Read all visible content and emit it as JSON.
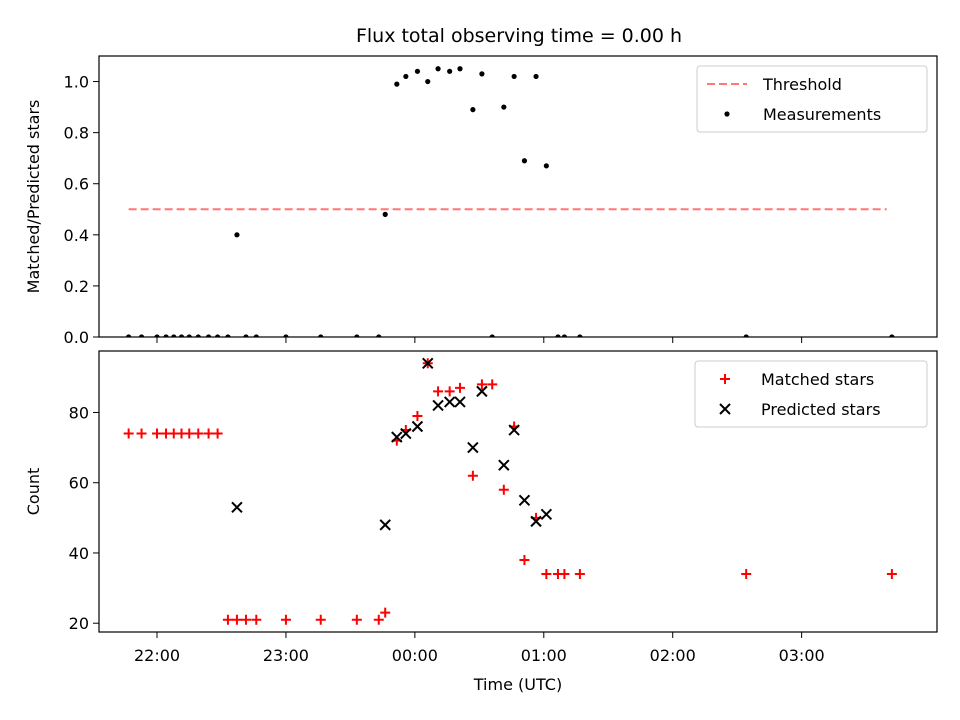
{
  "figure_title": "Flux total observing time = 0.00 h",
  "colors": {
    "threshold": "#ff7777",
    "measurements": "#000000",
    "matched": "#ff0000",
    "predicted": "#000000"
  },
  "chart_data": [
    {
      "type": "scatter",
      "title": "Flux total observing time = 0.00 h",
      "xlabel": "",
      "ylabel": "Matched/Predicted stars",
      "x_unit": "hours (UTC, relative to 00:00; negative = previous evening)",
      "xlim": [
        -2.45,
        4.05
      ],
      "ylim": [
        0,
        1.1
      ],
      "x_ticks": [
        -2,
        -1,
        0,
        1,
        2,
        3
      ],
      "x_tick_labels": [
        "",
        "",
        "",
        "",
        "",
        ""
      ],
      "y_ticks": [
        0.0,
        0.2,
        0.4,
        0.6,
        0.8,
        1.0
      ],
      "y_tick_labels": [
        "0.0",
        "0.2",
        "0.4",
        "0.6",
        "0.8",
        "1.0"
      ],
      "legend_position": "top-right",
      "series": [
        {
          "name": "Threshold",
          "style": "dashed-line",
          "x": [
            -2.22,
            3.66
          ],
          "y": [
            0.5,
            0.5
          ]
        },
        {
          "name": "Measurements",
          "style": "dot",
          "x": [
            -2.22,
            -2.12,
            -2.0,
            -1.93,
            -1.87,
            -1.81,
            -1.75,
            -1.68,
            -1.6,
            -1.53,
            -1.45,
            -1.38,
            -1.31,
            -1.23,
            -1.0,
            -0.73,
            -0.45,
            -0.28,
            -0.23,
            -0.14,
            -0.07,
            0.02,
            0.1,
            0.18,
            0.27,
            0.35,
            0.45,
            0.52,
            0.6,
            0.69,
            0.77,
            0.85,
            0.94,
            1.02,
            1.11,
            1.16,
            1.28,
            2.57,
            3.7
          ],
          "y": [
            0,
            0,
            0,
            0,
            0,
            0,
            0,
            0,
            0,
            0,
            0,
            0.4,
            0,
            0,
            0,
            0,
            0,
            0,
            0.48,
            0.99,
            1.02,
            1.04,
            1.0,
            1.05,
            1.04,
            1.05,
            0.89,
            1.03,
            0,
            0.9,
            1.02,
            0.69,
            1.02,
            0.67,
            0,
            0,
            0,
            0,
            0
          ]
        }
      ]
    },
    {
      "type": "scatter",
      "title": "",
      "xlabel": "Time (UTC)",
      "ylabel": "Count",
      "x_unit": "hours (UTC, relative to 00:00; negative = previous evening)",
      "xlim": [
        -2.45,
        4.05
      ],
      "ylim": [
        17.5,
        97.5
      ],
      "x_ticks": [
        -2,
        -1,
        0,
        1,
        2,
        3
      ],
      "x_tick_labels": [
        "22:00",
        "23:00",
        "00:00",
        "01:00",
        "02:00",
        "03:00"
      ],
      "y_ticks": [
        20,
        40,
        60,
        80
      ],
      "y_tick_labels": [
        "20",
        "40",
        "60",
        "80"
      ],
      "legend_position": "top-right",
      "series": [
        {
          "name": "Matched stars",
          "style": "plus",
          "x": [
            -2.22,
            -2.12,
            -2.0,
            -1.93,
            -1.87,
            -1.81,
            -1.75,
            -1.68,
            -1.6,
            -1.53,
            -1.45,
            -1.38,
            -1.31,
            -1.23,
            -1.0,
            -0.73,
            -0.45,
            -0.28,
            -0.23,
            -0.14,
            -0.07,
            0.02,
            0.1,
            0.18,
            0.27,
            0.35,
            0.45,
            0.52,
            0.6,
            0.69,
            0.77,
            0.85,
            0.94,
            1.02,
            1.11,
            1.16,
            1.28,
            2.57,
            3.7
          ],
          "y": [
            74,
            74,
            74,
            74,
            74,
            74,
            74,
            74,
            74,
            74,
            21,
            21,
            21,
            21,
            21,
            21,
            21,
            21,
            23,
            72,
            75,
            79,
            94,
            86,
            86,
            87,
            62,
            88,
            88,
            58,
            76,
            38,
            50,
            34,
            34,
            34,
            34,
            34,
            34
          ]
        },
        {
          "name": "Predicted stars",
          "style": "x",
          "x": [
            -1.38,
            -0.23,
            -0.14,
            -0.07,
            0.02,
            0.1,
            0.18,
            0.27,
            0.35,
            0.45,
            0.52,
            0.69,
            0.77,
            0.85,
            0.94,
            1.02
          ],
          "y": [
            53,
            48,
            73,
            74,
            76,
            94,
            82,
            83,
            83,
            70,
            86,
            65,
            75,
            55,
            49,
            51
          ]
        }
      ]
    }
  ]
}
